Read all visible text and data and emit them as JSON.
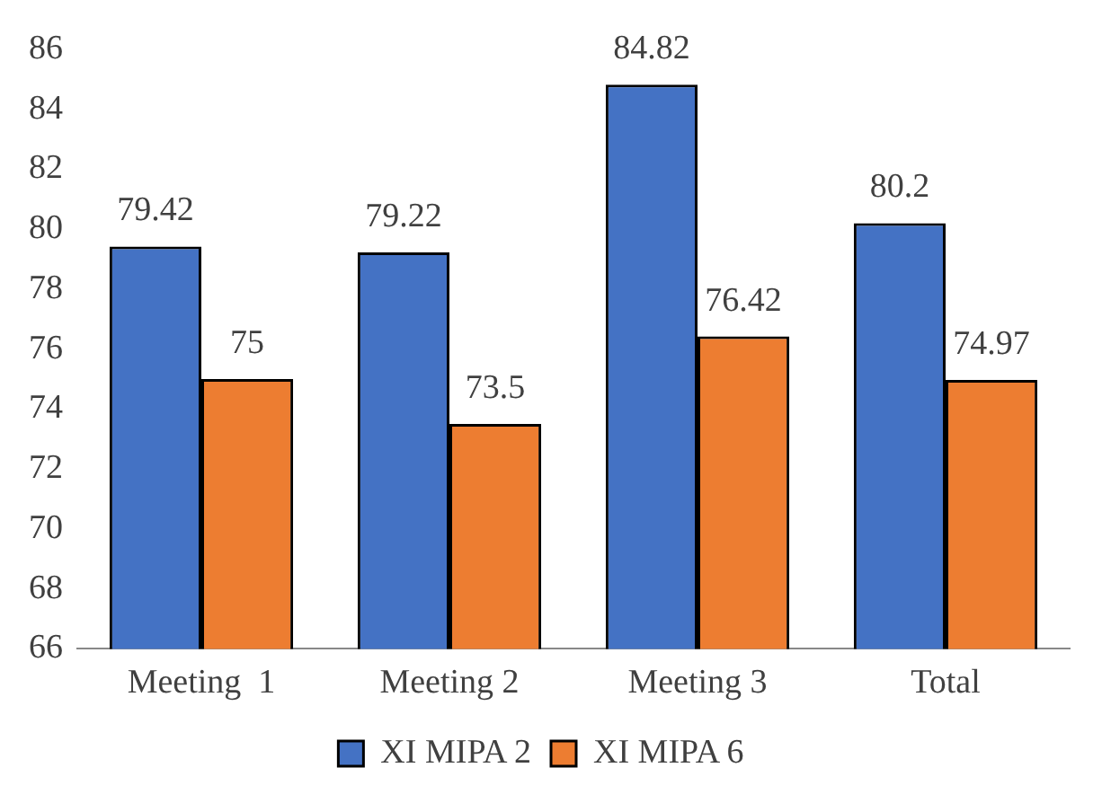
{
  "chart_data": {
    "type": "bar",
    "categories": [
      "Meeting  1",
      "Meeting 2",
      "Meeting 3",
      "Total"
    ],
    "series": [
      {
        "name": "XI MIPA 2",
        "color": "#4472c4",
        "values": [
          79.42,
          79.22,
          84.82,
          80.2
        ]
      },
      {
        "name": "XI MIPA 6",
        "color": "#ed7d31",
        "values": [
          75,
          73.5,
          76.42,
          74.97
        ]
      }
    ],
    "ylim": [
      66,
      86
    ],
    "yticks": [
      66,
      68,
      70,
      72,
      74,
      76,
      78,
      80,
      82,
      84,
      86
    ],
    "grid": false,
    "legend": "bottom",
    "data_labels": true
  }
}
